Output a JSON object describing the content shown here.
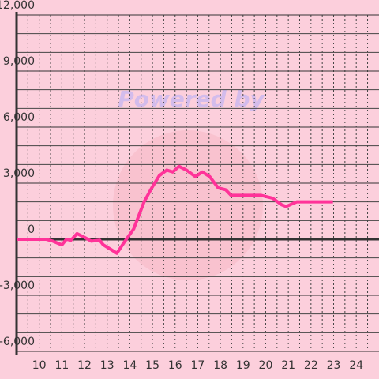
{
  "chart_data": {
    "type": "line",
    "watermark": "Powered by",
    "x": [
      9,
      10.3,
      10.6,
      11,
      11.2,
      11.4,
      11.67,
      12,
      12.3,
      12.67,
      12.83,
      13.17,
      13.43,
      13.73,
      14.17,
      14.63,
      14.97,
      15.3,
      15.63,
      15.9,
      16.17,
      16.5,
      16.9,
      17.2,
      17.53,
      17.9,
      18.23,
      18.47,
      19.8,
      20.3,
      20.7,
      20.9,
      21.37,
      21.97,
      22.97
    ],
    "series": [
      {
        "color": "#ff3399",
        "values": [
          0,
          0,
          -100,
          -300,
          0,
          -50,
          300,
          100,
          -100,
          -50,
          -300,
          -550,
          -750,
          -200,
          550,
          2000,
          2750,
          3400,
          3700,
          3600,
          3900,
          3700,
          3350,
          3600,
          3350,
          2750,
          2650,
          2350,
          2350,
          2200,
          1850,
          1750,
          2000,
          2000,
          2000
        ]
      }
    ],
    "xlim": [
      9,
      24.9
    ],
    "xticks": [
      10,
      11,
      12,
      13,
      14,
      15,
      16,
      17,
      18,
      19,
      20,
      21,
      22,
      23,
      24
    ],
    "x_minor_ticks": [
      9.5,
      10.5,
      11.5,
      12.5,
      13.5,
      14.5,
      15.5,
      16.5,
      17.5,
      18.5,
      19.5,
      20.5,
      21.5,
      22.5,
      23.5,
      24.5
    ],
    "ylim": [
      -6000,
      12000
    ],
    "yticks": [
      {
        "value": -6000,
        "label": "-6,000"
      },
      {
        "value": -3000,
        "label": "-3,000"
      },
      0,
      {
        "value": 3000,
        "label": "3,000"
      },
      {
        "value": 6000,
        "label": "6,000"
      },
      {
        "value": 9000,
        "label": "9,000"
      },
      {
        "value": 12000,
        "label": "12,000"
      }
    ],
    "y_minor_ticks": [
      -5000,
      -4000,
      -2000,
      -1000,
      1000,
      2000,
      4000,
      5000,
      7000,
      8000,
      10000,
      11000
    ],
    "grid": true
  }
}
